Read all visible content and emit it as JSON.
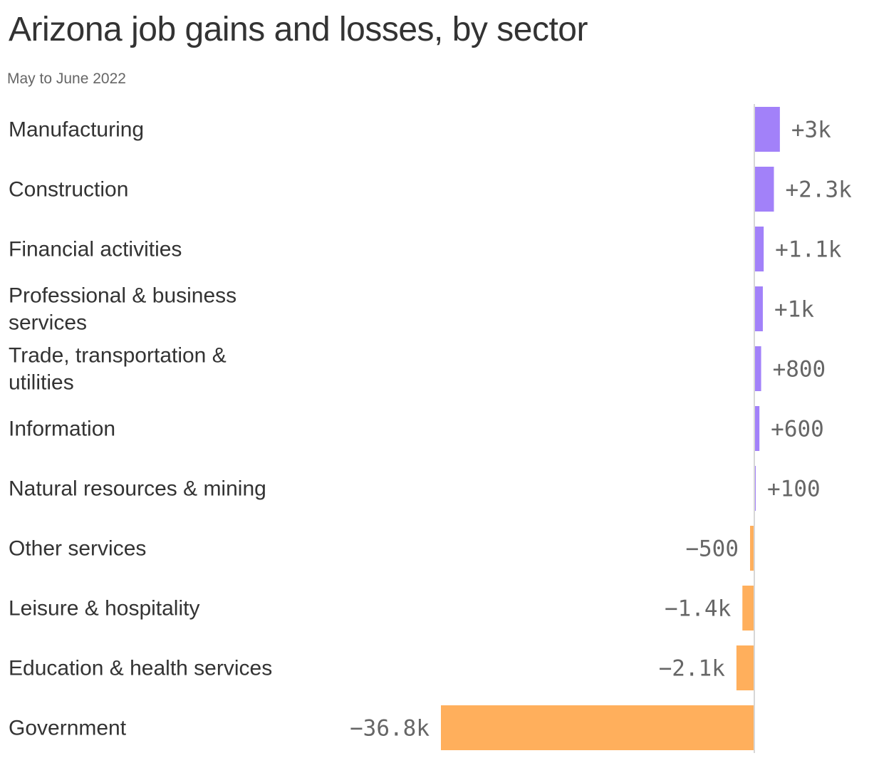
{
  "title": "Arizona job gains and losses, by sector",
  "subtitle": "May to June 2022",
  "colors": {
    "positive": "#a281f9",
    "negative": "#ffaf5c",
    "axis": "#d7d7d7",
    "label": "#333333",
    "value_label": "#666666"
  },
  "chart_data": {
    "type": "bar",
    "orientation": "horizontal",
    "categories": [
      "Manufacturing",
      "Construction",
      "Financial activities",
      "Professional & business services",
      "Trade, transportation & utilities",
      "Information",
      "Natural resources & mining",
      "Other services",
      "Leisure & hospitality",
      "Education & health services",
      "Government"
    ],
    "values": [
      3000,
      2300,
      1100,
      1000,
      800,
      600,
      100,
      -500,
      -1400,
      -2100,
      -36800
    ],
    "value_labels": [
      "+3k",
      "+2.3k",
      "+1.1k",
      "+1k",
      "+800",
      "+600",
      "+100",
      "−500",
      "−1.4k",
      "−2.1k",
      "−36.8k"
    ],
    "xlim": [
      -36800,
      3000
    ],
    "grid": false,
    "legend": "none"
  }
}
